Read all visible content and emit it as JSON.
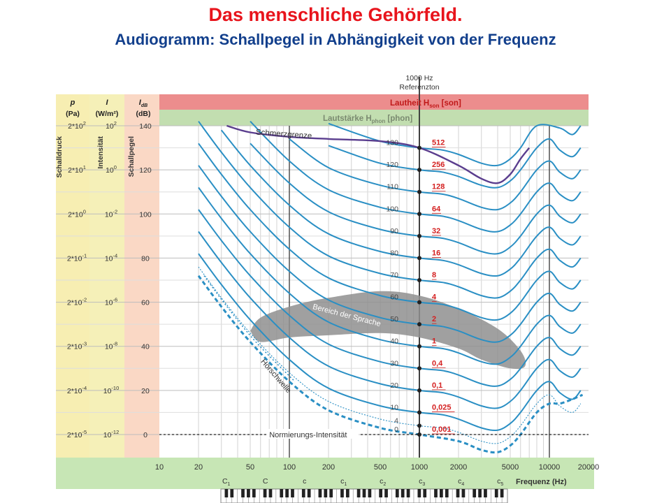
{
  "title": "Das menschliche Gehörfeld.",
  "subtitle": "Audiogramm: Schallpegel in Abhängigkeit von der Frequenz",
  "colors": {
    "title": "#e8141c",
    "subtitle": "#123f8c",
    "curve": "#2a8fc4",
    "pain": "#5a3d8e",
    "speech": "#8f8f8f",
    "phonLabel": "#333333",
    "sonLabel": "#d42020",
    "sonBand": "#ec8d8d",
    "phonBand": "#c2deb0",
    "bottomBand": "#c7e6b5",
    "colP": "#f7eeb2",
    "colI": "#f5f0b8",
    "colDb": "#fad8c5"
  },
  "chart_data": {
    "type": "line",
    "x_scale": "log",
    "xlim": [
      10,
      20000
    ],
    "ylim": [
      0,
      140
    ],
    "grid": true,
    "xlabel": "Frequenz (Hz)",
    "xticks": [
      10,
      20,
      50,
      100,
      200,
      500,
      1000,
      2000,
      5000,
      10000,
      20000
    ],
    "xtick_labels": [
      "10",
      "20",
      "50",
      "100",
      "200",
      "500",
      "1000",
      "2000",
      "5000",
      "10000",
      "20000"
    ],
    "yticks": [
      0,
      20,
      40,
      60,
      80,
      100,
      120,
      140
    ],
    "axes_left": [
      {
        "name": "p",
        "unit": "(Pa)",
        "label": "Schalldruck",
        "ticks": [
          "2*10",
          "2*10",
          "2*10",
          "2*10",
          "2*10",
          "2*10",
          "2*10",
          "2*10"
        ],
        "exps": [
          "2",
          "1",
          "0",
          "-1",
          "-2",
          "-3",
          "-4",
          "-5"
        ]
      },
      {
        "name": "I",
        "unit": "(W/m²)",
        "label": "Intensität",
        "ticks": [
          "10",
          "10",
          "10",
          "10",
          "10",
          "10",
          "10",
          "10"
        ],
        "exps": [
          "2",
          "0",
          "-2",
          "-4",
          "-6",
          "-8",
          "-10",
          "-12"
        ]
      },
      {
        "name": "I",
        "sub": "dB",
        "unit": "(dB)",
        "label": "Schallpegel",
        "ticks": [
          "140",
          "120",
          "100",
          "80",
          "60",
          "40",
          "20",
          "0"
        ]
      }
    ],
    "bands": {
      "reference": "1000 Hz Referenzton",
      "son": "Lautheit  H",
      "son_sub": "son",
      "son_unit": " [son]",
      "phon": "Lautstärke  H",
      "phon_sub": "phon",
      "phon_unit": " [phon]"
    },
    "phon_levels": [
      0,
      4,
      10,
      20,
      30,
      40,
      50,
      60,
      70,
      80,
      90,
      100,
      110,
      120,
      130
    ],
    "phon_labels": [
      "0",
      "4",
      "10",
      "20",
      "30",
      "40",
      "50",
      "60",
      "70",
      "80",
      "90",
      "100",
      "110",
      "120",
      "130"
    ],
    "son_labels": [
      "0,001",
      "",
      "0,025",
      "0,1",
      "0,4",
      "1",
      "2",
      "4",
      "8",
      "16",
      "32",
      "64",
      "128",
      "256",
      "512"
    ],
    "curve_freq": [
      20,
      30,
      50,
      100,
      200,
      500,
      1000,
      1500,
      2000,
      3000,
      4000,
      5000,
      6000,
      8000,
      10000,
      12000,
      15000
    ],
    "curve_offset": [
      72,
      58,
      42,
      24,
      11,
      3,
      0,
      -1,
      -3,
      -7,
      -8,
      -5,
      0,
      10,
      14,
      9,
      6
    ],
    "curve_end_offset": 10,
    "pain_threshold": {
      "label": "Schmerzgrenze",
      "x": [
        33,
        50,
        100,
        200,
        500,
        1000,
        2000,
        3000,
        4000,
        5000,
        6000,
        7000
      ],
      "y": [
        140,
        137,
        135,
        134,
        133,
        130,
        122,
        116,
        114,
        118,
        125,
        130
      ]
    },
    "hearing_threshold": {
      "label": "Hörschwelle",
      "x": [
        20,
        30,
        50,
        100,
        200,
        500,
        1000,
        2000,
        3000,
        4000,
        5000,
        6000,
        8000,
        10000,
        12000,
        15000,
        18000
      ],
      "y": [
        72,
        58,
        42,
        24,
        11,
        3,
        0,
        -3,
        -7,
        -8,
        -5,
        0,
        10,
        14,
        14,
        16,
        18
      ]
    },
    "speech_region": {
      "label": "Bereich der Sprache",
      "x": [
        50,
        60,
        100,
        200,
        500,
        1000,
        2000,
        4000,
        6000,
        6500,
        5000,
        3000,
        2000,
        1000,
        500,
        200,
        100,
        60,
        50
      ],
      "y": [
        47,
        53,
        58,
        62,
        65,
        63,
        57,
        48,
        38,
        31,
        30,
        34,
        39,
        44,
        46,
        45,
        44,
        42,
        47
      ]
    },
    "normierung": {
      "label": "Normierungs-Intensität",
      "y": 0
    },
    "piano_notes": [
      "C",
      "C",
      "c",
      "c",
      "c",
      "c",
      "c",
      "c",
      "c"
    ],
    "piano_subs": [
      "1",
      "",
      "",
      "1",
      "2",
      "3",
      "4",
      "5",
      ""
    ],
    "piano_freq": [
      32.7,
      65.4,
      130.8,
      261.6,
      523.3,
      1046.5,
      2093,
      4186,
      8372
    ]
  }
}
